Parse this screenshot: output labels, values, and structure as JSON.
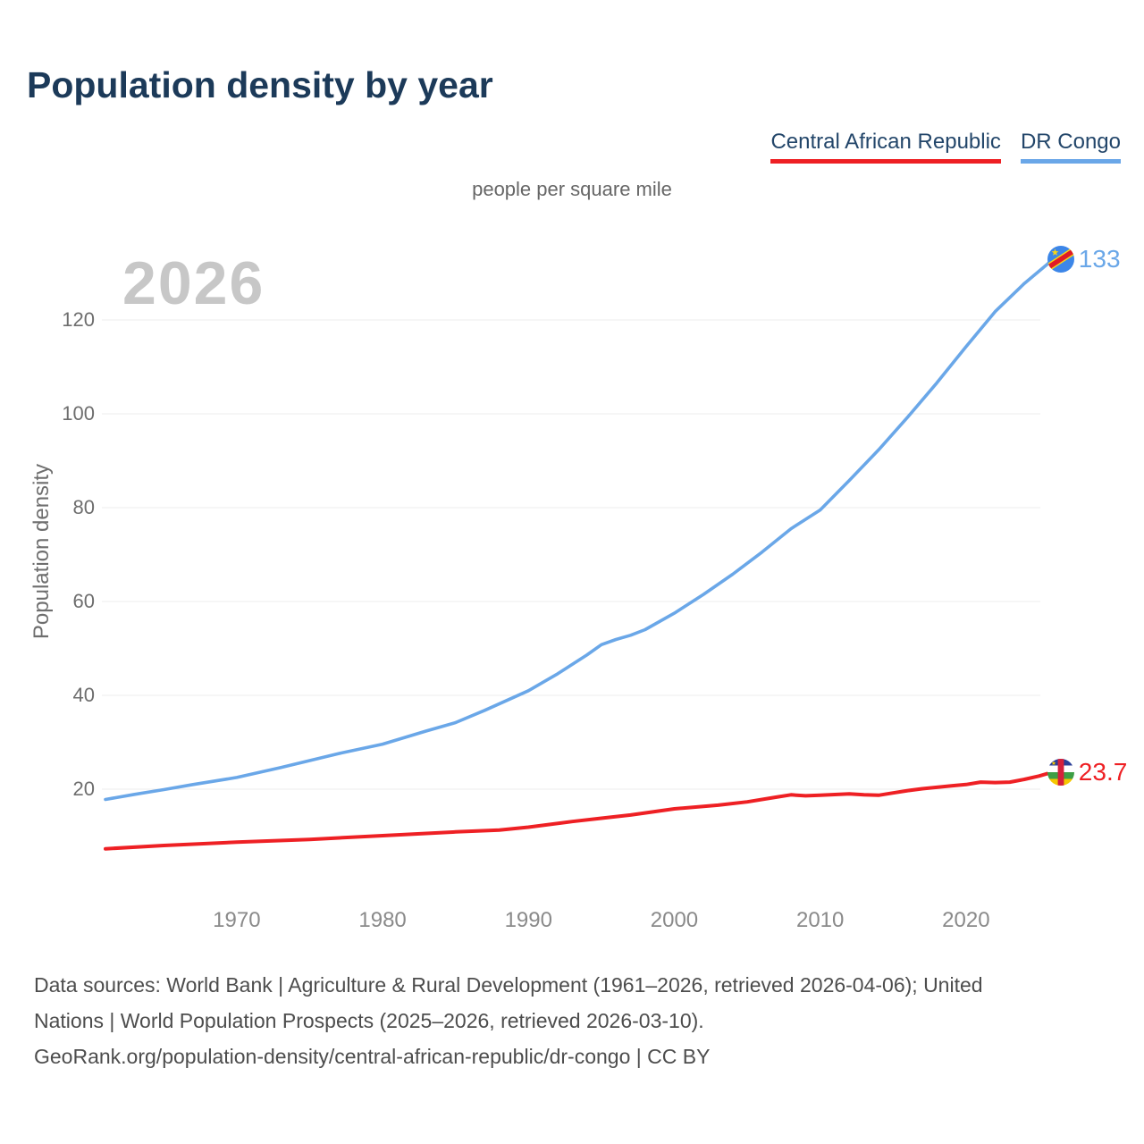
{
  "page": {
    "title": "Population density by year",
    "unit_label": "people per square mile",
    "watermark": "2026"
  },
  "legend": {
    "items": [
      {
        "label": "Central African Republic",
        "color": "#ee2024"
      },
      {
        "label": "DR Congo",
        "color": "#6aa7e8"
      }
    ]
  },
  "axes": {
    "y_label": "Population density",
    "y_ticks": [
      "20",
      "40",
      "60",
      "80",
      "100",
      "120"
    ],
    "x_ticks": [
      "1970",
      "1980",
      "1990",
      "2000",
      "2010",
      "2020"
    ]
  },
  "footer": {
    "line1": "Data sources: World Bank | Agriculture & Rural Development (1961–2026, retrieved 2026-04-06); United",
    "line2": "Nations | World Population Prospects (2025–2026, retrieved 2026-03-10).",
    "line3": "GeoRank.org/population-density/central-african-republic/dr-congo | CC BY"
  },
  "chart_data": {
    "type": "line",
    "title": "Population density by year",
    "subtitle": "people per square mile",
    "xlabel": "",
    "ylabel": "Population density",
    "xlim": [
      1961,
      2026
    ],
    "ylim": [
      5,
      140
    ],
    "xticks": [
      1970,
      1980,
      1990,
      2000,
      2010,
      2020
    ],
    "yticks": [
      20,
      40,
      60,
      80,
      100,
      120
    ],
    "grid": "horizontal",
    "legend_position": "top-right",
    "watermark": "2026",
    "colors": {
      "grid": "#ececec",
      "watermark": "#c7c7c7",
      "title": "#1c3a59"
    },
    "series": [
      {
        "name": "Central African Republic",
        "color": "#ee2024",
        "end_label": "23.7",
        "end_value": 23.7,
        "flag": "central-african-republic-flag",
        "points": [
          [
            1961,
            7.3
          ],
          [
            1965,
            8.0
          ],
          [
            1970,
            8.7
          ],
          [
            1975,
            9.3
          ],
          [
            1980,
            10.1
          ],
          [
            1985,
            10.9
          ],
          [
            1988,
            11.3
          ],
          [
            1990,
            11.9
          ],
          [
            1993,
            13.1
          ],
          [
            1995,
            13.8
          ],
          [
            1997,
            14.5
          ],
          [
            2000,
            15.8
          ],
          [
            2003,
            16.6
          ],
          [
            2005,
            17.3
          ],
          [
            2007,
            18.3
          ],
          [
            2008,
            18.8
          ],
          [
            2009,
            18.6
          ],
          [
            2010,
            18.7
          ],
          [
            2012,
            19.0
          ],
          [
            2013,
            18.8
          ],
          [
            2014,
            18.7
          ],
          [
            2015,
            19.2
          ],
          [
            2016,
            19.7
          ],
          [
            2017,
            20.1
          ],
          [
            2018,
            20.4
          ],
          [
            2019,
            20.7
          ],
          [
            2020,
            21.0
          ],
          [
            2021,
            21.5
          ],
          [
            2022,
            21.4
          ],
          [
            2023,
            21.5
          ],
          [
            2024,
            22.1
          ],
          [
            2025,
            22.8
          ],
          [
            2026,
            23.7
          ]
        ]
      },
      {
        "name": "DR Congo",
        "color": "#6aa7e8",
        "end_label": "133",
        "end_value": 133,
        "flag": "dr-congo-flag",
        "points": [
          [
            1961,
            17.8
          ],
          [
            1963,
            18.9
          ],
          [
            1965,
            19.9
          ],
          [
            1967,
            21.0
          ],
          [
            1970,
            22.5
          ],
          [
            1973,
            24.6
          ],
          [
            1975,
            26.1
          ],
          [
            1977,
            27.6
          ],
          [
            1980,
            29.6
          ],
          [
            1983,
            32.4
          ],
          [
            1985,
            34.2
          ],
          [
            1987,
            36.8
          ],
          [
            1990,
            41.0
          ],
          [
            1992,
            44.6
          ],
          [
            1994,
            48.6
          ],
          [
            1995,
            50.8
          ],
          [
            1996,
            51.9
          ],
          [
            1997,
            52.8
          ],
          [
            1998,
            54.0
          ],
          [
            2000,
            57.5
          ],
          [
            2002,
            61.5
          ],
          [
            2004,
            65.8
          ],
          [
            2006,
            70.5
          ],
          [
            2008,
            75.5
          ],
          [
            2010,
            79.5
          ],
          [
            2012,
            85.8
          ],
          [
            2014,
            92.3
          ],
          [
            2016,
            99.3
          ],
          [
            2018,
            106.6
          ],
          [
            2020,
            114.3
          ],
          [
            2022,
            121.8
          ],
          [
            2024,
            127.8
          ],
          [
            2026,
            133
          ]
        ]
      }
    ]
  }
}
